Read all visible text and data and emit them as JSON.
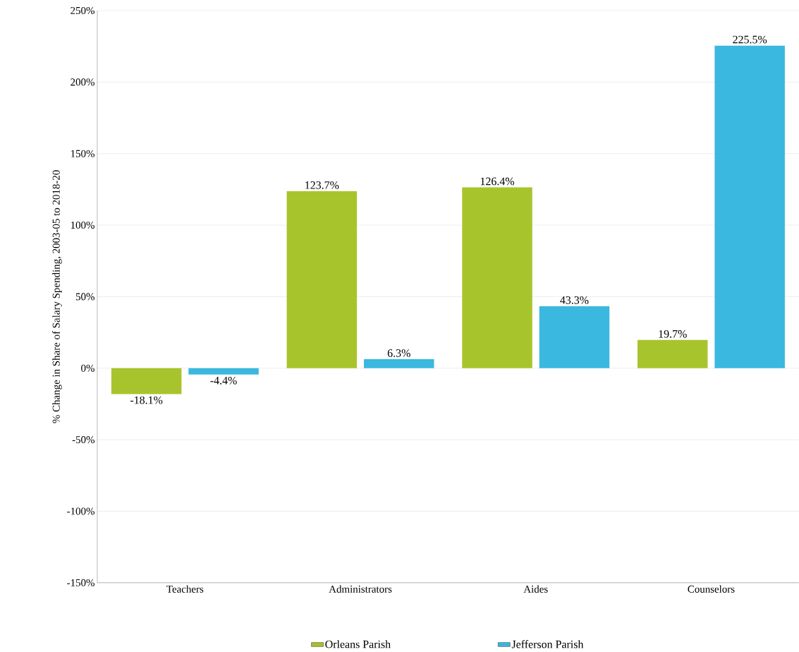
{
  "chart_data": {
    "type": "bar",
    "ylabel": "% Change in Share of Salary Spending, 2003-05 to 2018-20",
    "categories": [
      "Teachers",
      "Administrators",
      "Aides",
      "Counselors"
    ],
    "series": [
      {
        "name": "Orleans Parish",
        "color": "#a8c42c",
        "values": [
          -18.1,
          123.7,
          126.4,
          19.7
        ],
        "value_labels": [
          "-18.1%",
          "123.7%",
          "126.4%",
          "19.7%"
        ]
      },
      {
        "name": "Jefferson Parish",
        "color": "#3ab8df",
        "values": [
          -4.4,
          6.3,
          43.3,
          225.5
        ],
        "value_labels": [
          "-4.4%",
          "6.3%",
          "43.3%",
          "225.5%"
        ]
      }
    ],
    "ylim": [
      -150,
      250
    ],
    "yticks": [
      {
        "value": -150,
        "label": "-150%"
      },
      {
        "value": -100,
        "label": "-100%"
      },
      {
        "value": -50,
        "label": "-50%"
      },
      {
        "value": 0,
        "label": "0%"
      },
      {
        "value": 50,
        "label": "50%"
      },
      {
        "value": 100,
        "label": "100%"
      },
      {
        "value": 150,
        "label": "150%"
      },
      {
        "value": 200,
        "label": "200%"
      },
      {
        "value": 250,
        "label": "250%"
      }
    ],
    "grid": "y",
    "legend": "bottom"
  }
}
